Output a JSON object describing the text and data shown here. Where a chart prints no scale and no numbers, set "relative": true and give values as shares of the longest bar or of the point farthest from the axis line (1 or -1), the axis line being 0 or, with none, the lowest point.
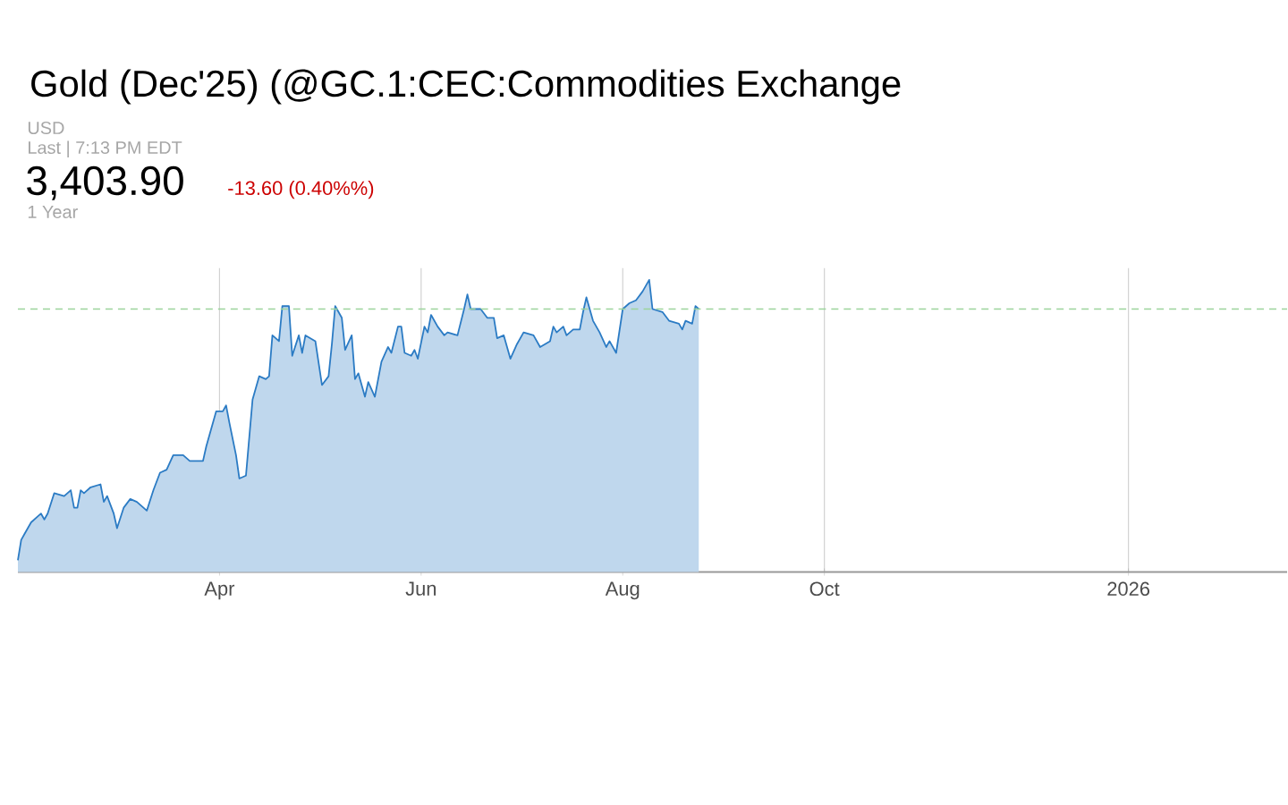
{
  "chart_data": {
    "type": "area",
    "title": "Gold (Dec'25) (@GC.1:CEC:Commodities Exchange",
    "annotations": [
      "USD",
      "Last | 7:13 PM EDT",
      "3,403.90",
      "-13.60 (0.40%%)",
      "1 Year"
    ],
    "relative": true,
    "tick_labels": "x",
    "grid": "x",
    "xlim": [
      "2025-01-30",
      "2026-02-18"
    ],
    "xticks": [
      {
        "value": "2025-04-01",
        "label": "Apr"
      },
      {
        "value": "2025-06-01",
        "label": "Jun"
      },
      {
        "value": "2025-08-01",
        "label": "Aug"
      },
      {
        "value": "2025-10-01",
        "label": "Oct"
      },
      {
        "value": "2026-01-01",
        "label": "2026"
      }
    ],
    "ref_lines": [
      {
        "axis": "y",
        "value": 0.9,
        "color": "#9bd49b",
        "line_style": "dashed"
      }
    ],
    "series": [
      {
        "color": "#2b7bc4",
        "x": [
          "2025-01-30",
          "2025-01-31",
          "2025-02-01",
          "2025-02-03",
          "2025-02-05",
          "2025-02-06",
          "2025-02-07",
          "2025-02-08",
          "2025-02-10",
          "2025-02-13",
          "2025-02-15",
          "2025-02-16",
          "2025-02-17",
          "2025-02-18",
          "2025-02-19",
          "2025-02-21",
          "2025-02-24",
          "2025-02-25",
          "2025-02-26",
          "2025-02-28",
          "2025-03-01",
          "2025-03-03",
          "2025-03-05",
          "2025-03-07",
          "2025-03-10",
          "2025-03-12",
          "2025-03-14",
          "2025-03-16",
          "2025-03-18",
          "2025-03-21",
          "2025-03-23",
          "2025-03-25",
          "2025-03-27",
          "2025-03-28",
          "2025-03-31",
          "2025-04-02",
          "2025-04-03",
          "2025-04-04",
          "2025-04-06",
          "2025-04-07",
          "2025-04-09",
          "2025-04-11",
          "2025-04-13",
          "2025-04-15",
          "2025-04-16",
          "2025-04-17",
          "2025-04-19",
          "2025-04-20",
          "2025-04-22",
          "2025-04-23",
          "2025-04-25",
          "2025-04-26",
          "2025-04-27",
          "2025-04-30",
          "2025-05-02",
          "2025-05-04",
          "2025-05-05",
          "2025-05-06",
          "2025-05-08",
          "2025-05-09",
          "2025-05-11",
          "2025-05-12",
          "2025-05-13",
          "2025-05-15",
          "2025-05-16",
          "2025-05-18",
          "2025-05-20",
          "2025-05-22",
          "2025-05-23",
          "2025-05-25",
          "2025-05-26",
          "2025-05-27",
          "2025-05-29",
          "2025-05-30",
          "2025-05-31",
          "2025-06-02",
          "2025-06-03",
          "2025-06-04",
          "2025-06-06",
          "2025-06-08",
          "2025-06-09",
          "2025-06-12",
          "2025-06-14",
          "2025-06-15",
          "2025-06-16",
          "2025-06-19",
          "2025-06-21",
          "2025-06-23",
          "2025-06-24",
          "2025-06-26",
          "2025-06-28",
          "2025-06-30",
          "2025-07-02",
          "2025-07-05",
          "2025-07-07",
          "2025-07-10",
          "2025-07-11",
          "2025-07-12",
          "2025-07-14",
          "2025-07-15",
          "2025-07-17",
          "2025-07-19",
          "2025-07-20",
          "2025-07-21",
          "2025-07-23",
          "2025-07-25",
          "2025-07-27",
          "2025-07-28",
          "2025-07-30",
          "2025-08-01",
          "2025-08-03",
          "2025-08-05",
          "2025-08-07",
          "2025-08-09",
          "2025-08-10",
          "2025-08-13",
          "2025-08-15",
          "2025-08-18",
          "2025-08-19",
          "2025-08-20",
          "2025-08-22",
          "2025-08-23",
          "2025-08-24"
        ],
        "values": [
          0.04,
          0.11,
          0.13,
          0.17,
          0.19,
          0.2,
          0.18,
          0.2,
          0.27,
          0.26,
          0.28,
          0.22,
          0.22,
          0.28,
          0.27,
          0.29,
          0.3,
          0.24,
          0.26,
          0.2,
          0.15,
          0.22,
          0.25,
          0.24,
          0.21,
          0.28,
          0.34,
          0.35,
          0.4,
          0.4,
          0.38,
          0.38,
          0.38,
          0.43,
          0.55,
          0.55,
          0.57,
          0.51,
          0.4,
          0.32,
          0.33,
          0.59,
          0.67,
          0.66,
          0.67,
          0.81,
          0.79,
          0.91,
          0.91,
          0.74,
          0.81,
          0.75,
          0.81,
          0.79,
          0.64,
          0.67,
          0.78,
          0.91,
          0.87,
          0.76,
          0.81,
          0.66,
          0.68,
          0.6,
          0.65,
          0.6,
          0.72,
          0.77,
          0.75,
          0.84,
          0.84,
          0.75,
          0.74,
          0.76,
          0.73,
          0.84,
          0.82,
          0.88,
          0.84,
          0.81,
          0.82,
          0.81,
          0.9,
          0.95,
          0.9,
          0.9,
          0.87,
          0.87,
          0.8,
          0.81,
          0.73,
          0.78,
          0.82,
          0.81,
          0.77,
          0.79,
          0.84,
          0.82,
          0.84,
          0.81,
          0.83,
          0.83,
          0.89,
          0.94,
          0.86,
          0.82,
          0.77,
          0.79,
          0.75,
          0.9,
          0.92,
          0.93,
          0.96,
          1.0,
          0.9,
          0.89,
          0.86,
          0.85,
          0.83,
          0.86,
          0.85,
          0.91,
          0.9
        ]
      }
    ]
  }
}
